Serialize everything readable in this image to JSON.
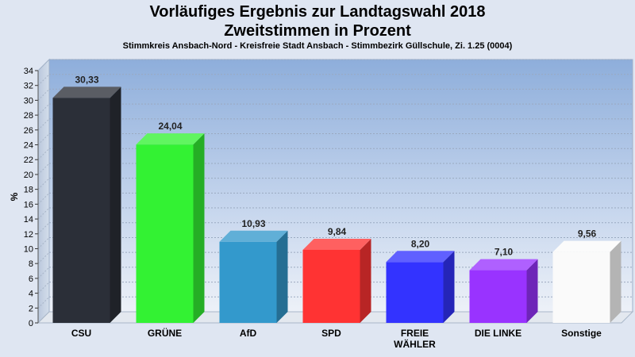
{
  "chart_data": {
    "type": "bar",
    "title_line1": "Vorläufiges Ergebnis zur Landtagswahl 2018",
    "title_line2": "Zweitstimmen in Prozent",
    "subtitle": "Stimmkreis Ansbach-Nord - Kreisfreie Stadt Ansbach - Stimmbezirk Güllschule, Zi. 1.25 (0004)",
    "ylabel": "%",
    "xlabel": "",
    "ylim": [
      0,
      34
    ],
    "ytick_step": 2,
    "grid": true,
    "categories": [
      "CSU",
      "GRÜNE",
      "AfD",
      "SPD",
      "FREIE WÄHLER",
      "DIE LINKE",
      "Sonstige"
    ],
    "category_lines": [
      [
        "CSU"
      ],
      [
        "GRÜNE"
      ],
      [
        "AfD"
      ],
      [
        "SPD"
      ],
      [
        "FREIE",
        "WÄHLER"
      ],
      [
        "DIE LINKE"
      ],
      [
        "Sonstige"
      ]
    ],
    "values": [
      30.33,
      24.04,
      10.93,
      9.84,
      8.2,
      7.1,
      9.56
    ],
    "value_labels": [
      "30,33",
      "24,04",
      "10,93",
      "9,84",
      "8,20",
      "7,10",
      "9,56"
    ],
    "colors": [
      "#2b2f38",
      "#33f233",
      "#3399cc",
      "#ff3333",
      "#3333ff",
      "#9933ff",
      "#fafafa"
    ]
  }
}
